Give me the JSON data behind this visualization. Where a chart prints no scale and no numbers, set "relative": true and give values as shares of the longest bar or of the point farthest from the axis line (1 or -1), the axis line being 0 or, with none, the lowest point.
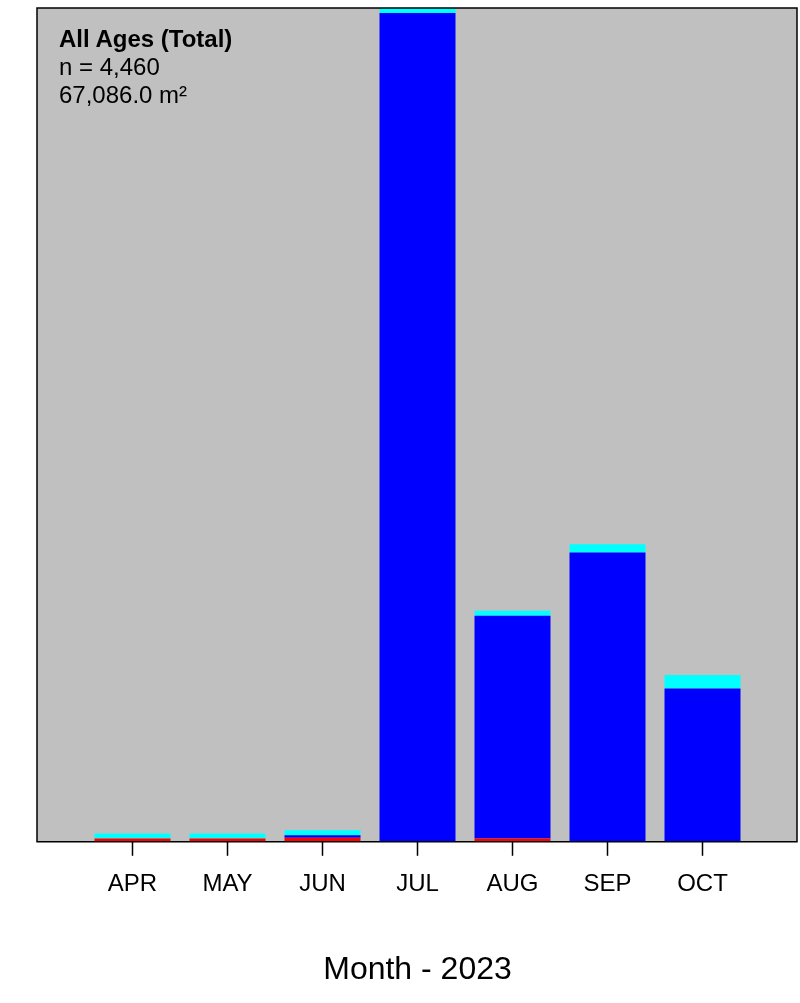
{
  "chart_data": {
    "type": "bar",
    "title": "All Ages (Total)",
    "annotations": [
      "n = 4,460",
      "67,086.0 m²"
    ],
    "xlabel": "Month - 2023",
    "categories": [
      "APR",
      "MAY",
      "JUN",
      "JUL",
      "AUG",
      "SEP",
      "OCT"
    ],
    "relative": true,
    "stacked": true,
    "grid": false,
    "legend": false,
    "series": [
      {
        "color": "#ff0000",
        "values": [
          0.004,
          0.004,
          0.005,
          0,
          0.004,
          0,
          0
        ]
      },
      {
        "color": "#0000ff",
        "values": [
          0,
          0,
          0.003,
          0.994,
          0.267,
          0.347,
          0.184
        ]
      },
      {
        "color": "#00ffff",
        "values": [
          0.006,
          0.006,
          0.006,
          0.006,
          0.006,
          0.01,
          0.016
        ]
      }
    ]
  }
}
